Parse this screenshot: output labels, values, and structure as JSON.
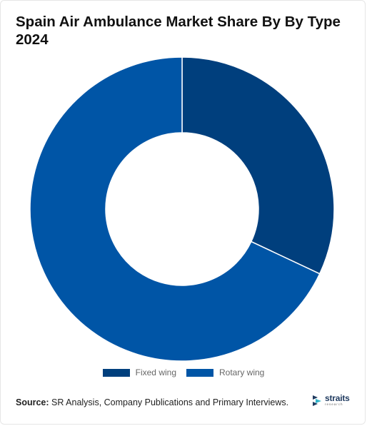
{
  "title_line1": "Spain Air Ambulance Market Share By By Type",
  "title_line2": "2024",
  "source_label": "Source:",
  "source_text": " SR Analysis, Company Publications and Primary Interviews.",
  "logo": {
    "word": "straits",
    "sub": "research"
  },
  "chart_data": {
    "type": "pie",
    "variant": "donut",
    "title": "Spain Air Ambulance Market Share By By Type 2024",
    "legend_position": "bottom",
    "slices": [
      {
        "label": "Fixed wing",
        "value": 32,
        "color": "#003f7d"
      },
      {
        "label": "Rotary wing",
        "value": 68,
        "color": "#0055a6"
      }
    ]
  }
}
